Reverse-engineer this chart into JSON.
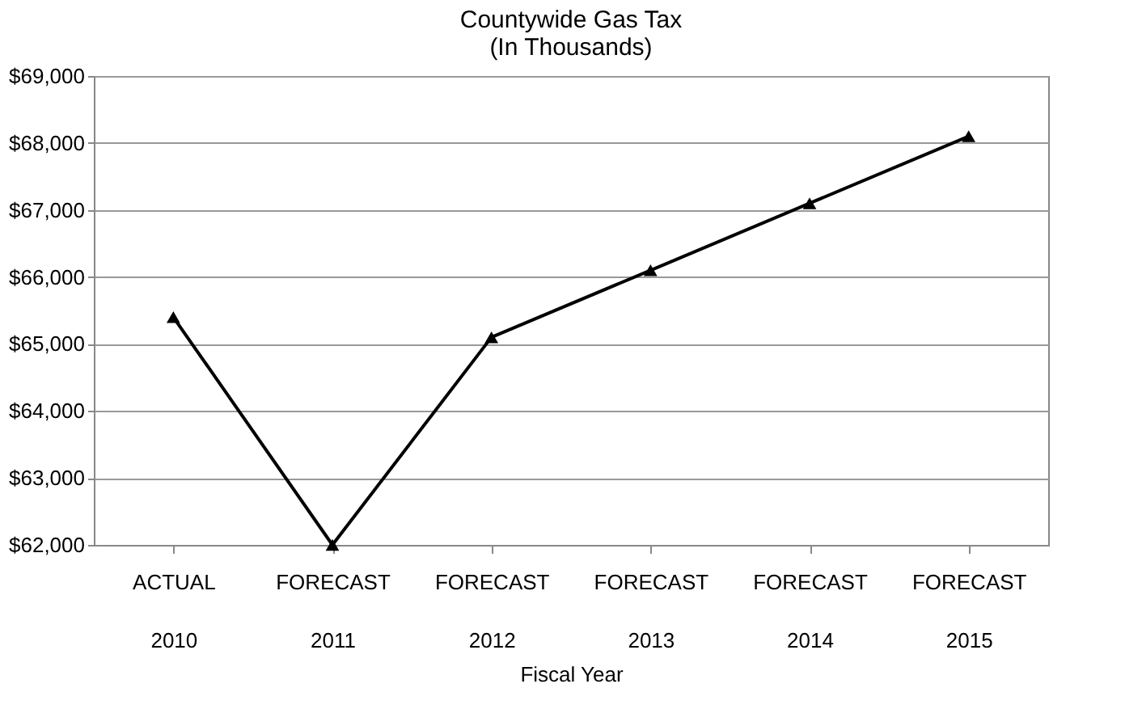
{
  "chart_data": {
    "type": "line",
    "title": "Countywide Gas Tax\n(In Thousands)",
    "xlabel": "Fiscal Year",
    "categories": [
      "ACTUAL 2010",
      "FORECAST 2011",
      "FORECAST 2012",
      "FORECAST 2013",
      "FORECAST 2014",
      "FORECAST 2015"
    ],
    "series": [
      {
        "color": "#000000",
        "values": [
          65400,
          62000,
          65100,
          66100,
          67100,
          68100
        ]
      }
    ],
    "ylim": [
      62000,
      69000
    ],
    "yticks": [
      {
        "value": 62000,
        "label": "$62,000"
      },
      {
        "value": 63000,
        "label": "$63,000"
      },
      {
        "value": 64000,
        "label": "$64,000"
      },
      {
        "value": 65000,
        "label": "$65,000"
      },
      {
        "value": 66000,
        "label": "$66,000"
      },
      {
        "value": 67000,
        "label": "$67,000"
      },
      {
        "value": 68000,
        "label": "$68,000"
      },
      {
        "value": 69000,
        "label": "$69,000"
      }
    ],
    "grid": "y",
    "marker": "triangle",
    "line_style": "solid"
  }
}
